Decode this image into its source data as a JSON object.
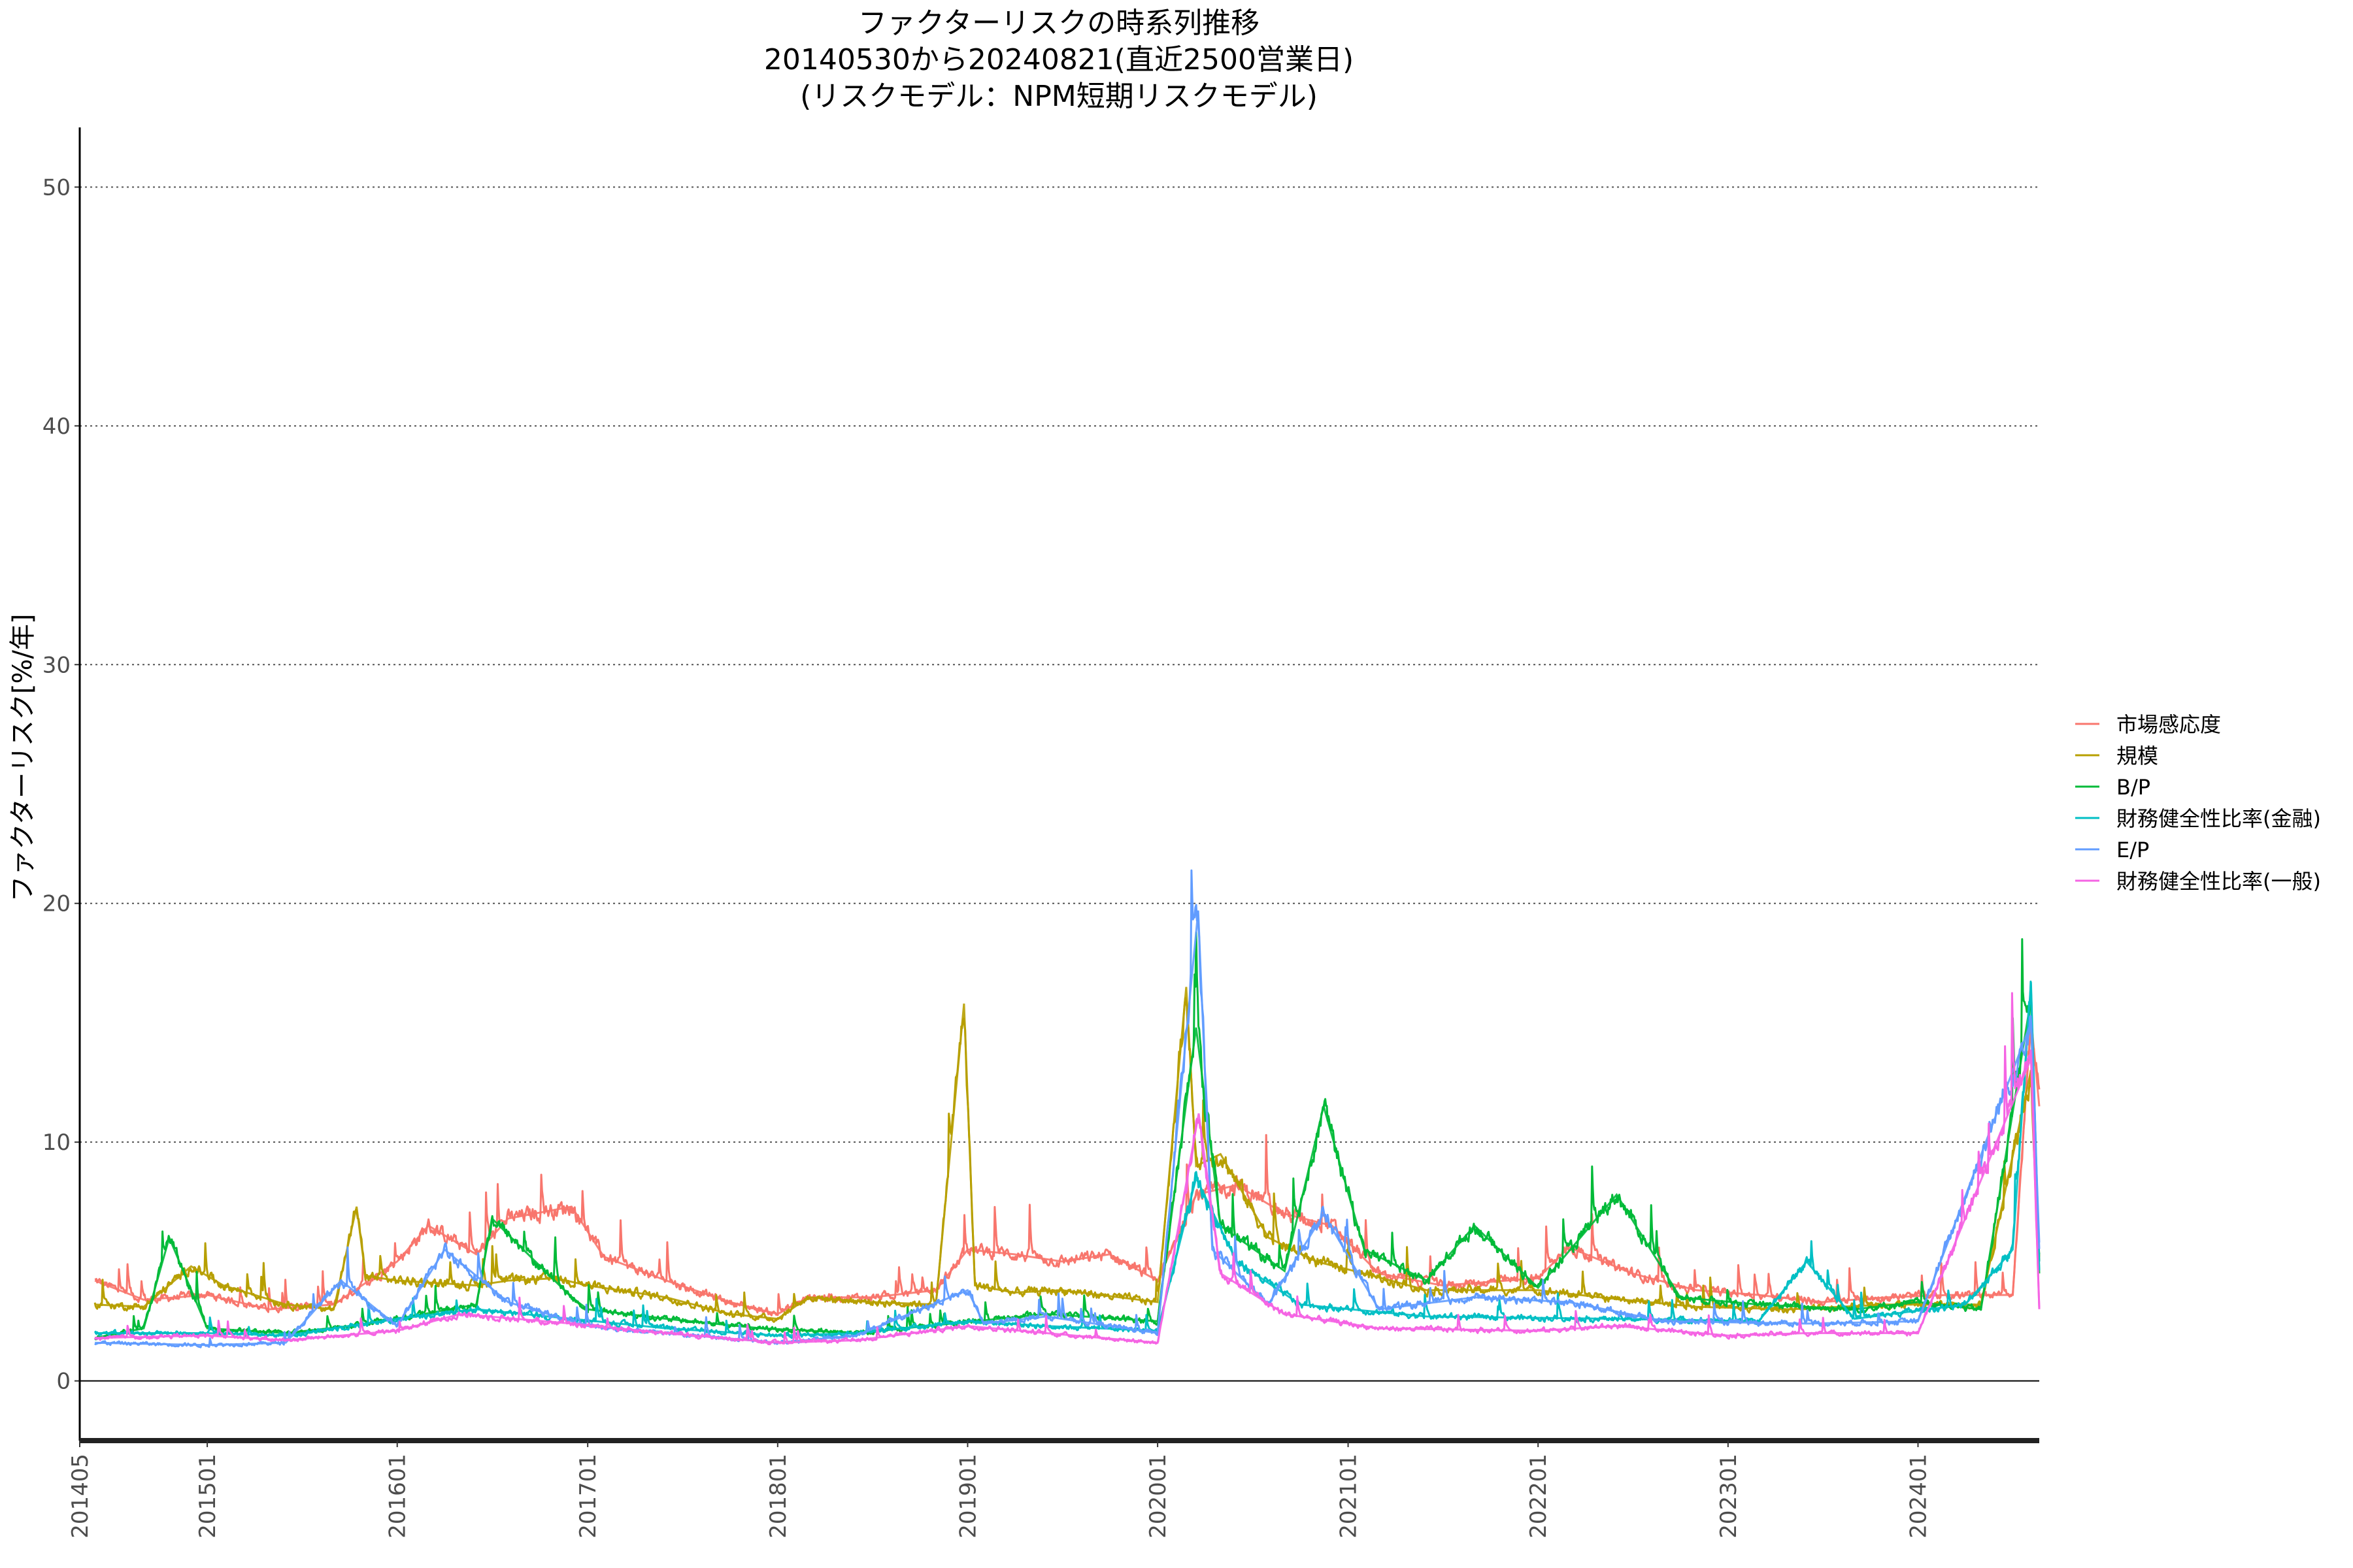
{
  "chart_data": {
    "type": "line",
    "title_lines": [
      "ファクターリスクの時系列推移",
      "20140530から20240821(直近2500営業日)",
      "(リスクモデル：NPM短期リスクモデル)"
    ],
    "ylabel": "ファクターリスク[%/年]",
    "xlabel": "",
    "ylim": [
      -2.5,
      52.5
    ],
    "y_ticks": [
      0,
      10,
      20,
      30,
      40,
      50
    ],
    "grid": "horizontal dotted",
    "legend_position": "right",
    "x_range": [
      "2014-05-30",
      "2024-08-21"
    ],
    "x_ticks": [
      "201405",
      "201501",
      "201601",
      "201701",
      "201801",
      "201901",
      "202001",
      "202101",
      "202201",
      "202301",
      "202401"
    ],
    "x_tick_dates": [
      "2014-05-01",
      "2015-01-01",
      "2016-01-01",
      "2017-01-01",
      "2018-01-01",
      "2019-01-01",
      "2020-01-01",
      "2021-01-01",
      "2022-01-01",
      "2023-01-01",
      "2024-01-01"
    ],
    "series": [
      {
        "name": "市場感応度",
        "color": "#F8766D",
        "points": [
          [
            "2014-05-30",
            4.2
          ],
          [
            "2014-09-01",
            3.4
          ],
          [
            "2015-01-01",
            3.6
          ],
          [
            "2015-05-01",
            3.0
          ],
          [
            "2015-09-01",
            3.2
          ],
          [
            "2016-01-01",
            5.0
          ],
          [
            "2016-03-01",
            6.5
          ],
          [
            "2016-06-01",
            5.3
          ],
          [
            "2016-08-01",
            6.8
          ],
          [
            "2016-12-01",
            7.3
          ],
          [
            "2017-02-01",
            5.2
          ],
          [
            "2017-06-01",
            4.2
          ],
          [
            "2017-10-01",
            3.3
          ],
          [
            "2018-01-01",
            2.8
          ],
          [
            "2018-03-01",
            3.5
          ],
          [
            "2018-07-01",
            3.5
          ],
          [
            "2018-11-01",
            3.8
          ],
          [
            "2019-01-01",
            5.5
          ],
          [
            "2019-04-01",
            5.3
          ],
          [
            "2019-07-01",
            5.0
          ],
          [
            "2019-10-01",
            5.3
          ],
          [
            "2020-01-01",
            4.2
          ],
          [
            "2020-03-15",
            7.8
          ],
          [
            "2020-06-01",
            8.2
          ],
          [
            "2020-09-01",
            7.0
          ],
          [
            "2020-12-01",
            6.5
          ],
          [
            "2021-03-01",
            4.5
          ],
          [
            "2021-07-01",
            4.0
          ],
          [
            "2022-01-01",
            4.3
          ],
          [
            "2022-03-01",
            5.6
          ],
          [
            "2022-07-01",
            4.5
          ],
          [
            "2022-11-01",
            3.8
          ],
          [
            "2023-03-01",
            3.6
          ],
          [
            "2023-07-01",
            3.3
          ],
          [
            "2023-11-01",
            3.5
          ],
          [
            "2024-03-01",
            3.6
          ],
          [
            "2024-07-01",
            3.6
          ],
          [
            "2024-08-05",
            15.2
          ],
          [
            "2024-08-21",
            11.5
          ]
        ]
      },
      {
        "name": "規模",
        "color": "#B79F00",
        "points": [
          [
            "2014-05-30",
            3.2
          ],
          [
            "2014-09-01",
            3.1
          ],
          [
            "2014-12-01",
            4.8
          ],
          [
            "2015-02-01",
            4.0
          ],
          [
            "2015-06-01",
            3.2
          ],
          [
            "2015-09-01",
            3.0
          ],
          [
            "2015-10-15",
            7.3
          ],
          [
            "2015-11-01",
            4.4
          ],
          [
            "2016-01-01",
            4.2
          ],
          [
            "2016-06-01",
            4.0
          ],
          [
            "2016-08-01",
            4.2
          ],
          [
            "2016-11-01",
            4.3
          ],
          [
            "2017-01-01",
            4.0
          ],
          [
            "2017-06-01",
            3.5
          ],
          [
            "2017-10-01",
            2.8
          ],
          [
            "2018-01-01",
            2.6
          ],
          [
            "2018-03-01",
            3.5
          ],
          [
            "2018-07-01",
            3.3
          ],
          [
            "2018-11-01",
            3.2
          ],
          [
            "2018-12-25",
            15.8
          ],
          [
            "2019-01-15",
            4.0
          ],
          [
            "2019-04-01",
            3.7
          ],
          [
            "2019-07-01",
            3.8
          ],
          [
            "2020-01-01",
            3.3
          ],
          [
            "2020-02-25",
            16.5
          ],
          [
            "2020-03-15",
            9.0
          ],
          [
            "2020-05-01",
            9.5
          ],
          [
            "2020-08-01",
            6.0
          ],
          [
            "2020-11-01",
            5.0
          ],
          [
            "2021-02-01",
            4.5
          ],
          [
            "2021-06-01",
            3.8
          ],
          [
            "2022-01-01",
            3.8
          ],
          [
            "2022-05-01",
            3.5
          ],
          [
            "2022-11-01",
            3.1
          ],
          [
            "2023-05-01",
            3.0
          ],
          [
            "2023-11-01",
            3.2
          ],
          [
            "2024-05-01",
            3.2
          ],
          [
            "2024-08-05",
            13.0
          ],
          [
            "2024-08-21",
            5.2
          ]
        ]
      },
      {
        "name": "B/P",
        "color": "#00BA38",
        "points": [
          [
            "2014-05-30",
            1.8
          ],
          [
            "2014-09-01",
            2.2
          ],
          [
            "2014-10-20",
            6.0
          ],
          [
            "2015-01-01",
            2.2
          ],
          [
            "2015-06-01",
            2.0
          ],
          [
            "2015-10-01",
            2.3
          ],
          [
            "2016-01-01",
            2.6
          ],
          [
            "2016-06-01",
            3.2
          ],
          [
            "2016-07-01",
            6.8
          ],
          [
            "2016-12-01",
            3.5
          ],
          [
            "2017-01-01",
            3.0
          ],
          [
            "2017-06-01",
            2.6
          ],
          [
            "2017-12-01",
            2.2
          ],
          [
            "2018-06-01",
            2.0
          ],
          [
            "2018-12-01",
            2.4
          ],
          [
            "2019-06-01",
            2.8
          ],
          [
            "2020-01-01",
            2.5
          ],
          [
            "2020-03-15",
            14.8
          ],
          [
            "2020-05-01",
            6.5
          ],
          [
            "2020-09-01",
            4.6
          ],
          [
            "2020-11-15",
            11.5
          ],
          [
            "2021-02-01",
            5.5
          ],
          [
            "2021-06-01",
            4.2
          ],
          [
            "2021-09-01",
            6.5
          ],
          [
            "2022-01-01",
            3.9
          ],
          [
            "2022-06-01",
            7.8
          ],
          [
            "2022-10-01",
            3.5
          ],
          [
            "2023-03-01",
            3.2
          ],
          [
            "2023-09-01",
            3.0
          ],
          [
            "2024-01-01",
            3.3
          ],
          [
            "2024-05-01",
            3.0
          ],
          [
            "2024-08-05",
            16.0
          ],
          [
            "2024-08-21",
            4.5
          ]
        ]
      },
      {
        "name": "財務健全性比率(金融)",
        "color": "#00BFC4",
        "points": [
          [
            "2014-05-30",
            2.0
          ],
          [
            "2015-01-01",
            2.0
          ],
          [
            "2015-06-01",
            1.9
          ],
          [
            "2016-01-01",
            2.6
          ],
          [
            "2016-06-01",
            3.0
          ],
          [
            "2016-12-01",
            2.6
          ],
          [
            "2017-06-01",
            2.2
          ],
          [
            "2018-01-01",
            1.9
          ],
          [
            "2018-06-01",
            2.0
          ],
          [
            "2019-01-01",
            2.5
          ],
          [
            "2019-06-01",
            2.3
          ],
          [
            "2020-01-01",
            2.1
          ],
          [
            "2020-03-15",
            8.5
          ],
          [
            "2020-06-01",
            5.0
          ],
          [
            "2020-10-01",
            3.2
          ],
          [
            "2021-06-01",
            2.7
          ],
          [
            "2022-06-01",
            2.6
          ],
          [
            "2023-03-01",
            2.5
          ],
          [
            "2023-06-01",
            5.0
          ],
          [
            "2023-09-01",
            2.6
          ],
          [
            "2024-04-01",
            3.2
          ],
          [
            "2024-07-01",
            5.5
          ],
          [
            "2024-08-05",
            16.7
          ],
          [
            "2024-08-21",
            5.0
          ]
        ]
      },
      {
        "name": "E/P",
        "color": "#619CFF",
        "points": [
          [
            "2014-05-30",
            1.6
          ],
          [
            "2015-01-01",
            1.5
          ],
          [
            "2015-06-01",
            1.6
          ],
          [
            "2015-09-15",
            4.2
          ],
          [
            "2016-01-01",
            2.3
          ],
          [
            "2016-04-01",
            5.5
          ],
          [
            "2016-08-01",
            3.3
          ],
          [
            "2017-01-01",
            2.3
          ],
          [
            "2017-06-01",
            2.0
          ],
          [
            "2018-01-01",
            1.6
          ],
          [
            "2018-06-01",
            1.9
          ],
          [
            "2019-01-01",
            3.8
          ],
          [
            "2019-02-01",
            2.4
          ],
          [
            "2019-06-01",
            2.7
          ],
          [
            "2020-01-01",
            2.0
          ],
          [
            "2020-03-19",
            19.7
          ],
          [
            "2020-04-15",
            5.5
          ],
          [
            "2020-08-01",
            3.2
          ],
          [
            "2020-11-15",
            7.0
          ],
          [
            "2021-03-01",
            3.0
          ],
          [
            "2021-09-01",
            3.5
          ],
          [
            "2022-03-01",
            3.3
          ],
          [
            "2022-09-01",
            2.5
          ],
          [
            "2023-06-01",
            2.4
          ],
          [
            "2024-01-01",
            2.5
          ],
          [
            "2024-08-05",
            15.0
          ],
          [
            "2024-08-21",
            5.8
          ]
        ]
      },
      {
        "name": "財務健全性比率(一般)",
        "color": "#F564E3",
        "points": [
          [
            "2014-05-30",
            1.8
          ],
          [
            "2015-01-01",
            1.9
          ],
          [
            "2015-06-01",
            1.7
          ],
          [
            "2016-01-01",
            2.1
          ],
          [
            "2016-05-01",
            2.8
          ],
          [
            "2016-12-01",
            2.4
          ],
          [
            "2017-06-01",
            2.0
          ],
          [
            "2018-01-01",
            1.6
          ],
          [
            "2018-06-01",
            1.7
          ],
          [
            "2019-01-01",
            2.3
          ],
          [
            "2019-06-01",
            2.0
          ],
          [
            "2020-01-01",
            1.6
          ],
          [
            "2020-03-20",
            11.2
          ],
          [
            "2020-05-01",
            4.5
          ],
          [
            "2020-09-01",
            2.8
          ],
          [
            "2021-03-01",
            2.2
          ],
          [
            "2022-01-01",
            2.1
          ],
          [
            "2022-06-01",
            2.3
          ],
          [
            "2023-01-01",
            1.9
          ],
          [
            "2023-06-01",
            2.0
          ],
          [
            "2024-01-01",
            2.0
          ],
          [
            "2024-08-05",
            13.5
          ],
          [
            "2024-08-21",
            3.0
          ]
        ]
      }
    ]
  }
}
